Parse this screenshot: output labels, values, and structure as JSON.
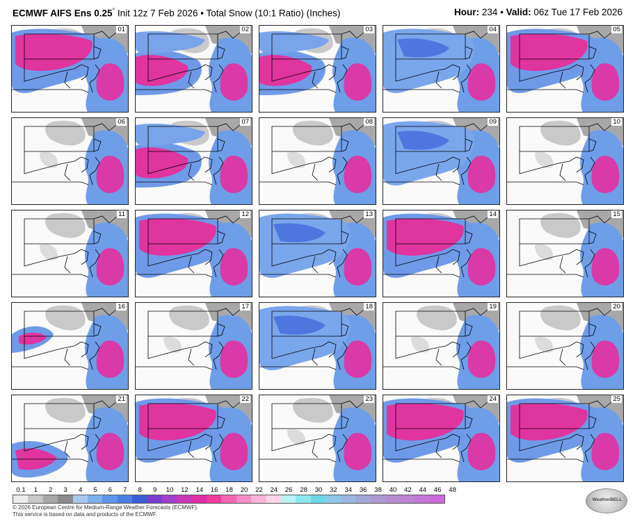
{
  "header": {
    "model": "ECMWF AIFS Ens 0.25",
    "degree": "°",
    "init": "Init 12z 7 Feb 2026",
    "bullet": "•",
    "product": "Total Snow (10:1 Ratio) (Inches)",
    "hour_label": "Hour:",
    "hour_value": "234",
    "valid_label": "Valid:",
    "valid_value": "06z Tue 17 Feb 2026"
  },
  "panels": [
    {
      "member": "01",
      "intensity": "heavy-north"
    },
    {
      "member": "06",
      "intensity": "light"
    },
    {
      "member": "11",
      "intensity": "light"
    },
    {
      "member": "16",
      "intensity": "moderate-west"
    },
    {
      "member": "21",
      "intensity": "moderate-south"
    },
    {
      "member": "02",
      "intensity": "heavy-west"
    },
    {
      "member": "07",
      "intensity": "heavy-west"
    },
    {
      "member": "12",
      "intensity": "heavy-north"
    },
    {
      "member": "17",
      "intensity": "light"
    },
    {
      "member": "22",
      "intensity": "heavy-north"
    },
    {
      "member": "03",
      "intensity": "heavy-west"
    },
    {
      "member": "08",
      "intensity": "light"
    },
    {
      "member": "13",
      "intensity": "moderate-north"
    },
    {
      "member": "18",
      "intensity": "moderate-north"
    },
    {
      "member": "23",
      "intensity": "light"
    },
    {
      "member": "04",
      "intensity": "moderate-north"
    },
    {
      "member": "09",
      "intensity": "moderate-north"
    },
    {
      "member": "14",
      "intensity": "heavy-north"
    },
    {
      "member": "19",
      "intensity": "light"
    },
    {
      "member": "24",
      "intensity": "heavy-north"
    },
    {
      "member": "05",
      "intensity": "heavy-north"
    },
    {
      "member": "10",
      "intensity": "light"
    },
    {
      "member": "15",
      "intensity": "light"
    },
    {
      "member": "20",
      "intensity": "light"
    },
    {
      "member": "25",
      "intensity": "heavy-north"
    }
  ],
  "colorbar": {
    "ticks": [
      "0.1",
      "1",
      "2",
      "3",
      "4",
      "5",
      "6",
      "7",
      "8",
      "9",
      "10",
      "12",
      "14",
      "16",
      "18",
      "20",
      "22",
      "24",
      "26",
      "28",
      "30",
      "32",
      "34",
      "36",
      "38",
      "40",
      "42",
      "44",
      "46",
      "48"
    ],
    "colors": [
      "#ececec",
      "#c8c8c8",
      "#a8a8a8",
      "#8c8c8c",
      "#a9c8f0",
      "#7fb0ee",
      "#5f96ea",
      "#4f7ee2",
      "#3c5ed4",
      "#7a3fd0",
      "#a040c8",
      "#c83ab8",
      "#e02fa6",
      "#f03b9a",
      "#f566b0",
      "#f88ec6",
      "#fab6da",
      "#fcd6ea",
      "#b9f2f2",
      "#8de8ee",
      "#6fd6e6",
      "#8fc8e8",
      "#9ab8e0",
      "#a4a8d6",
      "#ad9ad0",
      "#b58ed0",
      "#bd82d2",
      "#c476d6",
      "#cb6ada"
    ]
  },
  "footer": {
    "line1": "© 2026 European Centre for Medium-Range Weather Forecasts (ECMWF).",
    "line2": "This service is based on data and products of the ECMWF."
  },
  "logo": {
    "text": "WeatherBELL"
  }
}
